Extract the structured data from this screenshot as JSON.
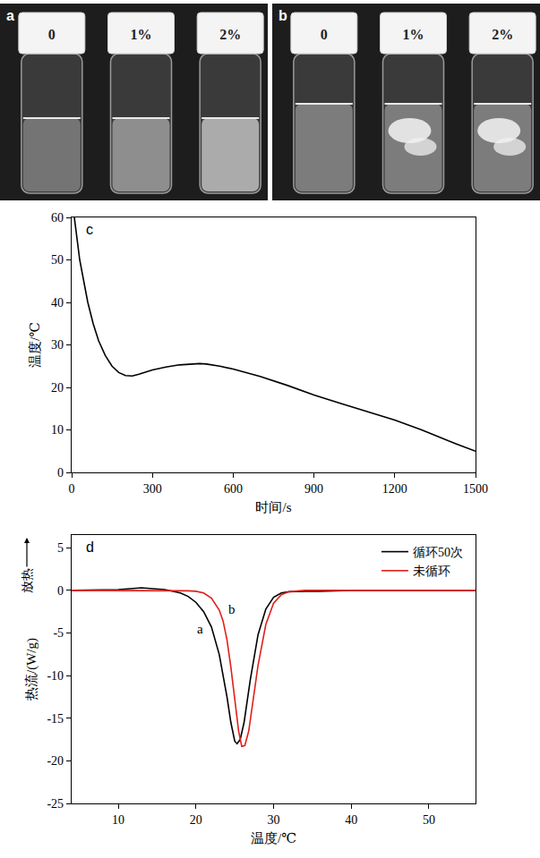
{
  "panels": [
    {
      "letter": "a",
      "type": "photo",
      "vial_labels": [
        "0",
        "1%",
        "2%"
      ]
    },
    {
      "letter": "b",
      "type": "photo",
      "vial_labels": [
        "0",
        "1%",
        "2%"
      ]
    }
  ],
  "chart_data": [
    {
      "type": "line",
      "panel": "c",
      "x_label": "时间/s",
      "y_label": "温度/℃",
      "xlim": [
        0,
        1500
      ],
      "xticks": [
        0,
        300,
        600,
        900,
        1200,
        1500
      ],
      "ylim": [
        0,
        60
      ],
      "yticks": [
        0,
        10,
        20,
        30,
        40,
        50,
        60
      ],
      "grid": false,
      "x": [
        10,
        20,
        30,
        45,
        60,
        80,
        100,
        125,
        150,
        175,
        200,
        225,
        250,
        300,
        350,
        400,
        450,
        475,
        500,
        550,
        600,
        700,
        800,
        900,
        1000,
        1100,
        1200,
        1300,
        1400,
        1500
      ],
      "values": [
        60,
        55,
        50,
        45,
        40,
        35,
        31,
        27.5,
        25,
        23.5,
        22.8,
        22.7,
        23.1,
        24.1,
        24.8,
        25.3,
        25.6,
        25.6,
        25.5,
        25,
        24.3,
        22.6,
        20.5,
        18.2,
        16.2,
        14.3,
        12.3,
        10,
        7.4,
        5
      ],
      "color": "#000000"
    },
    {
      "type": "line",
      "panel": "d",
      "x_label": "温度/℃",
      "y_label": "热流/(W/g)",
      "y_direction_label": "放热",
      "xlim": [
        4,
        56
      ],
      "xticks": [
        10,
        20,
        30,
        40,
        50
      ],
      "ylim": [
        -25,
        6.5
      ],
      "yticks": [
        -25,
        -20,
        -15,
        -10,
        -5,
        0,
        5
      ],
      "grid": false,
      "legend": "upper right",
      "series": [
        {
          "name": "循环50次",
          "color": "#000000",
          "x": [
            4,
            10,
            13,
            16,
            18,
            19,
            20,
            21,
            22,
            23,
            24,
            24.5,
            25,
            25.3,
            25.7,
            26.2,
            27,
            28,
            29,
            30,
            31,
            32,
            34,
            36,
            40,
            56
          ],
          "values": [
            0,
            0.1,
            0.3,
            0.1,
            -0.3,
            -0.7,
            -1.4,
            -2.5,
            -4.3,
            -7.5,
            -12.5,
            -15.5,
            -17.7,
            -18,
            -17.5,
            -15.5,
            -10.5,
            -5.2,
            -2.2,
            -0.8,
            -0.3,
            -0.15,
            -0.1,
            -0.1,
            0,
            0
          ]
        },
        {
          "name": "未循环",
          "color": "#e0201b",
          "x": [
            4,
            15,
            19,
            20,
            21,
            22,
            23,
            23.5,
            24,
            24.5,
            25,
            25.5,
            25.9,
            26.3,
            26.8,
            27.5,
            28,
            29,
            30,
            31,
            32,
            34,
            56
          ],
          "values": [
            0,
            0,
            -0.05,
            -0.1,
            -0.3,
            -0.9,
            -2.3,
            -3.6,
            -5.8,
            -9,
            -13,
            -16.5,
            -18.3,
            -18.2,
            -16.5,
            -12,
            -8.8,
            -4,
            -1.5,
            -0.5,
            -0.15,
            0,
            0
          ]
        }
      ],
      "annotations": [
        {
          "text": "a",
          "x": 20.6,
          "y": -4.5
        },
        {
          "text": "b",
          "x": 24.6,
          "y": -2.2
        }
      ]
    }
  ]
}
